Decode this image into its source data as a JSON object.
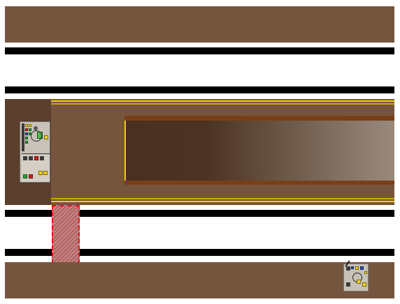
{
  "scene": {
    "colors": {
      "background": "#ffffff",
      "band": "#76553f",
      "rail": "#000000",
      "bay": "#5b3e2c",
      "bay_stripe": "#f0d000",
      "conveyor_frame": "#7a3f18",
      "crossing_border": "#e01010",
      "panel": "#c8c2b8"
    },
    "elements": {
      "top_band": "floor-band",
      "rails": [
        "rail-upper-1",
        "rail-upper-2",
        "rail-lower-1",
        "rail-lower-2"
      ],
      "machine_bay": "machine-bay",
      "conveyor": "conveyor-belt",
      "crossing": "hatched-crossing",
      "control_panel": "control-panel",
      "robot": "robot-unit",
      "bottom_band": "floor-band"
    },
    "icons": {
      "control_panel": "control-panel-icon",
      "robot": "robot-icon"
    }
  }
}
